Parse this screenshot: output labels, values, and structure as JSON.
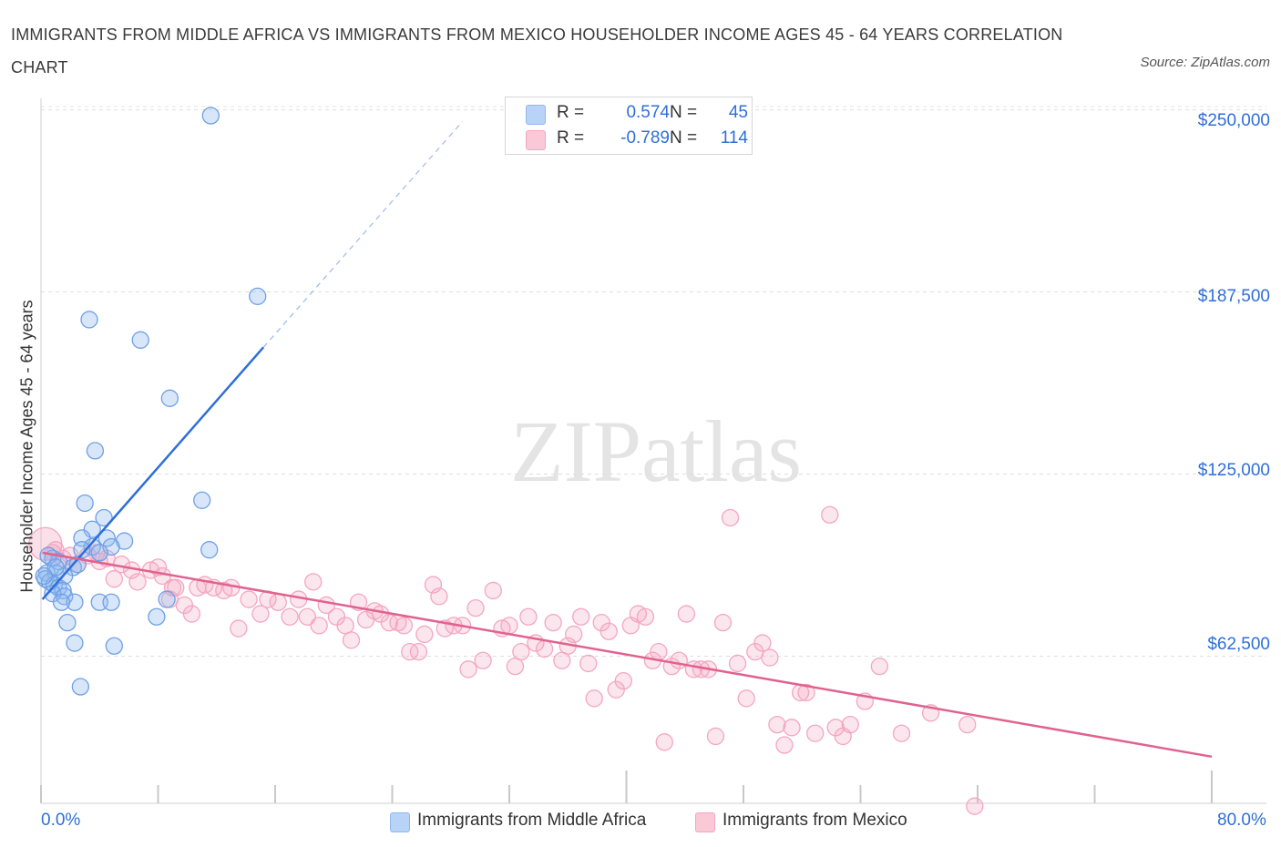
{
  "title": "IMMIGRANTS FROM MIDDLE AFRICA VS IMMIGRANTS FROM MEXICO HOUSEHOLDER INCOME AGES 45 - 64 YEARS CORRELATION CHART",
  "source": "Source: ZipAtlas.com",
  "watermark": "ZIPatlas",
  "colors": {
    "blue": "#8fb8ee",
    "blue_line": "#2e6fd8",
    "pink": "#f4a6c0",
    "pink_line": "#e0628f",
    "tick_text": "#2e6fd8"
  },
  "legend": {
    "rows": [
      {
        "r_label": "R =",
        "r_value": "0.574",
        "n_label": "N =",
        "n_value": "45"
      },
      {
        "r_label": "R =",
        "r_value": "-0.789",
        "n_label": "N =",
        "n_value": "114"
      }
    ]
  },
  "bottom_legend": [
    "Immigrants from Middle Africa",
    "Immigrants from Mexico"
  ],
  "chart_data": {
    "type": "scatter",
    "xlabel": "",
    "ylabel": "Householder Income Ages 45 - 64 years",
    "xlim": [
      0,
      80
    ],
    "ylim": [
      12000,
      258000
    ],
    "x_tick_labels": [
      "0.0%",
      "80.0%"
    ],
    "y_tick_values": [
      62500,
      125000,
      187500,
      250000
    ],
    "y_tick_labels": [
      "$62,500",
      "$125,000",
      "$187,500",
      "$250,000"
    ],
    "grid": "horizontal dashed",
    "series": [
      {
        "name": "Immigrants from Middle Africa",
        "color": "#8fb8ee",
        "points": [
          [
            11.6,
            248000
          ],
          [
            14.8,
            186000
          ],
          [
            3.3,
            178000
          ],
          [
            6.8,
            171000
          ],
          [
            8.8,
            151000
          ],
          [
            3.7,
            133000
          ],
          [
            11.0,
            116000
          ],
          [
            3.0,
            115000
          ],
          [
            4.3,
            110000
          ],
          [
            3.5,
            106000
          ],
          [
            2.8,
            103000
          ],
          [
            5.7,
            102000
          ],
          [
            4.5,
            103000
          ],
          [
            4.8,
            100000
          ],
          [
            11.5,
            99000
          ],
          [
            3.5,
            100000
          ],
          [
            4.0,
            98000
          ],
          [
            2.8,
            99000
          ],
          [
            0.8,
            96000
          ],
          [
            1.2,
            95000
          ],
          [
            2.2,
            93000
          ],
          [
            2.5,
            94000
          ],
          [
            0.4,
            91000
          ],
          [
            1.0,
            91000
          ],
          [
            1.6,
            90000
          ],
          [
            0.3,
            89000
          ],
          [
            0.6,
            88000
          ],
          [
            0.9,
            87000
          ],
          [
            1.2,
            86000
          ],
          [
            1.5,
            85000
          ],
          [
            0.8,
            84000
          ],
          [
            1.6,
            83000
          ],
          [
            2.3,
            81000
          ],
          [
            1.4,
            81000
          ],
          [
            4.0,
            81000
          ],
          [
            4.8,
            81000
          ],
          [
            8.6,
            82000
          ],
          [
            7.9,
            76000
          ],
          [
            1.8,
            74000
          ],
          [
            2.3,
            67000
          ],
          [
            5.0,
            66000
          ],
          [
            2.7,
            52000
          ],
          [
            0.5,
            97000
          ],
          [
            1.0,
            93000
          ],
          [
            0.2,
            90000
          ]
        ],
        "trend": {
          "x": [
            0.1,
            15.2
          ],
          "y": [
            82000,
            168500
          ],
          "dashed_to": [
            28.8,
            246000
          ]
        }
      },
      {
        "name": "Immigrants from Mexico",
        "color": "#f4a6c0",
        "points": [
          [
            0.3,
            101000
          ],
          [
            0.8,
            98000
          ],
          [
            1.5,
            96000
          ],
          [
            2.5,
            94000
          ],
          [
            3.2,
            97000
          ],
          [
            4.0,
            95000
          ],
          [
            4.5,
            96000
          ],
          [
            5.0,
            89000
          ],
          [
            5.5,
            94000
          ],
          [
            6.2,
            92000
          ],
          [
            6.6,
            88000
          ],
          [
            7.5,
            92000
          ],
          [
            8.0,
            93000
          ],
          [
            8.3,
            90000
          ],
          [
            8.8,
            82000
          ],
          [
            9.2,
            86000
          ],
          [
            9.8,
            80000
          ],
          [
            10.3,
            77000
          ],
          [
            10.7,
            86000
          ],
          [
            11.2,
            87000
          ],
          [
            11.8,
            86000
          ],
          [
            12.5,
            85000
          ],
          [
            13.0,
            86000
          ],
          [
            13.5,
            72000
          ],
          [
            14.2,
            82000
          ],
          [
            15.0,
            77000
          ],
          [
            15.5,
            82000
          ],
          [
            16.2,
            81000
          ],
          [
            17.0,
            76000
          ],
          [
            17.6,
            82000
          ],
          [
            18.2,
            76000
          ],
          [
            18.6,
            88000
          ],
          [
            19.0,
            73000
          ],
          [
            19.5,
            80000
          ],
          [
            20.2,
            76000
          ],
          [
            20.8,
            73000
          ],
          [
            21.2,
            68000
          ],
          [
            21.7,
            81000
          ],
          [
            22.2,
            75000
          ],
          [
            22.8,
            78000
          ],
          [
            23.2,
            77000
          ],
          [
            23.8,
            74000
          ],
          [
            24.4,
            74000
          ],
          [
            24.8,
            73000
          ],
          [
            25.2,
            64000
          ],
          [
            25.8,
            64000
          ],
          [
            26.2,
            70000
          ],
          [
            26.8,
            87000
          ],
          [
            27.2,
            83000
          ],
          [
            27.6,
            72000
          ],
          [
            28.2,
            73000
          ],
          [
            28.8,
            73000
          ],
          [
            29.2,
            58000
          ],
          [
            29.7,
            79000
          ],
          [
            30.2,
            61000
          ],
          [
            30.9,
            85000
          ],
          [
            31.5,
            72000
          ],
          [
            32.0,
            73000
          ],
          [
            32.4,
            59000
          ],
          [
            32.8,
            64000
          ],
          [
            33.3,
            76000
          ],
          [
            33.8,
            67000
          ],
          [
            34.4,
            65000
          ],
          [
            35.0,
            74000
          ],
          [
            35.6,
            61000
          ],
          [
            36.0,
            66000
          ],
          [
            36.4,
            70000
          ],
          [
            36.9,
            76000
          ],
          [
            37.4,
            60000
          ],
          [
            37.8,
            48000
          ],
          [
            38.3,
            74000
          ],
          [
            38.8,
            71000
          ],
          [
            39.3,
            51000
          ],
          [
            39.8,
            54000
          ],
          [
            40.3,
            73000
          ],
          [
            40.8,
            77000
          ],
          [
            41.3,
            76000
          ],
          [
            41.8,
            61000
          ],
          [
            42.2,
            64000
          ],
          [
            42.6,
            33000
          ],
          [
            43.1,
            59000
          ],
          [
            43.6,
            61000
          ],
          [
            44.1,
            77000
          ],
          [
            44.6,
            58000
          ],
          [
            45.1,
            58000
          ],
          [
            45.6,
            58000
          ],
          [
            46.1,
            35000
          ],
          [
            46.6,
            74000
          ],
          [
            47.1,
            110000
          ],
          [
            47.6,
            60000
          ],
          [
            48.2,
            48000
          ],
          [
            48.8,
            64000
          ],
          [
            49.3,
            67000
          ],
          [
            49.8,
            62000
          ],
          [
            50.3,
            39000
          ],
          [
            50.8,
            32000
          ],
          [
            51.3,
            38000
          ],
          [
            51.9,
            50000
          ],
          [
            52.3,
            50000
          ],
          [
            52.9,
            36000
          ],
          [
            53.9,
            111000
          ],
          [
            54.3,
            38000
          ],
          [
            54.8,
            35000
          ],
          [
            55.3,
            39000
          ],
          [
            56.3,
            47000
          ],
          [
            57.3,
            59000
          ],
          [
            58.8,
            36000
          ],
          [
            60.8,
            43000
          ],
          [
            63.3,
            39000
          ],
          [
            63.8,
            11000
          ],
          [
            1.0,
            99000
          ],
          [
            2.0,
            97000
          ],
          [
            3.8,
            98000
          ],
          [
            9.0,
            86000
          ]
        ],
        "trend": {
          "x": [
            0.1,
            80.0
          ],
          "y": [
            98000,
            28000
          ]
        }
      }
    ]
  }
}
